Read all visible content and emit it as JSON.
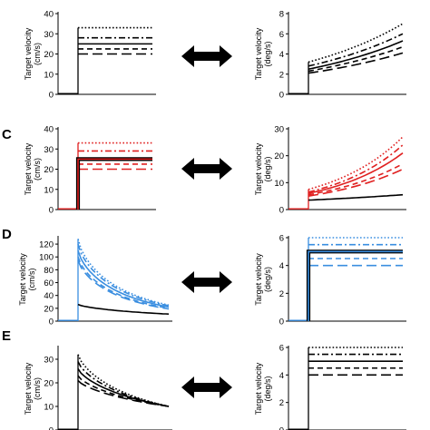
{
  "panel_letters": [
    "C",
    "D",
    "E"
  ],
  "chart_data": [
    {
      "type": "line",
      "panel": "B-left",
      "ylabel": "Target velocity",
      "yunit": "(cm/s)",
      "ylim": [
        0,
        40
      ],
      "yticks": [
        "0",
        "10",
        "20",
        "30",
        "40"
      ],
      "color": "#000000",
      "shape": "step",
      "series": [
        {
          "style": "dotted",
          "values": [
            0,
            33,
            33
          ]
        },
        {
          "style": "dashdot",
          "values": [
            0,
            28,
            28
          ]
        },
        {
          "style": "solid",
          "values": [
            0,
            25,
            25
          ]
        },
        {
          "style": "dashed",
          "values": [
            0,
            22.5,
            22.5
          ]
        },
        {
          "style": "longdash",
          "values": [
            0,
            20,
            20
          ]
        }
      ]
    },
    {
      "type": "line",
      "panel": "B-right",
      "ylabel": "Target velocity",
      "yunit": "(deg/s)",
      "ylim": [
        0,
        8
      ],
      "yticks": [
        "0",
        "2",
        "4",
        "6",
        "8"
      ],
      "color": "#000000",
      "shape": "growth",
      "series": [
        {
          "style": "dotted",
          "start": 3.2,
          "end": 7.0
        },
        {
          "style": "dashdot",
          "start": 2.8,
          "end": 6.0
        },
        {
          "style": "solid",
          "start": 2.5,
          "end": 5.3
        },
        {
          "style": "dashed",
          "start": 2.3,
          "end": 4.7
        },
        {
          "style": "longdash",
          "start": 2.1,
          "end": 4.1
        }
      ]
    },
    {
      "type": "line",
      "panel": "C-left",
      "ylabel": "Target velocity",
      "yunit": "(cm/s)",
      "ylim": [
        0,
        40
      ],
      "yticks": [
        "0",
        "10",
        "20",
        "30",
        "40"
      ],
      "color": "#e02020",
      "shape": "step",
      "highlight": {
        "style": "solid",
        "color": "#000000",
        "values": [
          0,
          25,
          25
        ]
      },
      "series": [
        {
          "style": "dotted",
          "values": [
            0,
            33,
            33
          ]
        },
        {
          "style": "dashdot",
          "values": [
            0,
            29,
            29
          ]
        },
        {
          "style": "solid",
          "values": [
            0,
            25,
            25
          ]
        },
        {
          "style": "dashed",
          "values": [
            0,
            22.5,
            22.5
          ]
        },
        {
          "style": "longdash",
          "values": [
            0,
            20,
            20
          ]
        }
      ]
    },
    {
      "type": "line",
      "panel": "C-right",
      "ylabel": "Target velocity",
      "yunit": "(deg/s)",
      "ylim": [
        0,
        30
      ],
      "yticks": [
        "0",
        "10",
        "20",
        "30"
      ],
      "color": "#e02020",
      "shape": "growth",
      "reference": {
        "style": "solid",
        "color": "#000000",
        "start": 3.5,
        "end": 5.5
      },
      "series": [
        {
          "style": "dotted",
          "start": 7.5,
          "end": 27
        },
        {
          "style": "dashdot",
          "start": 6.5,
          "end": 24
        },
        {
          "style": "solid",
          "start": 6.0,
          "end": 21
        },
        {
          "style": "dashed",
          "start": 5.5,
          "end": 17
        },
        {
          "style": "longdash",
          "start": 5.0,
          "end": 15
        }
      ]
    },
    {
      "type": "line",
      "panel": "D-left",
      "ylabel": "Target velocity",
      "yunit": "(cm/s)",
      "ylim": [
        0,
        130
      ],
      "yticks": [
        "0",
        "20",
        "40",
        "60",
        "80",
        "100",
        "120"
      ],
      "color": "#3a8ee0",
      "shape": "decay",
      "reference": {
        "style": "solid",
        "color": "#000000",
        "start": 26,
        "end": 11
      },
      "series": [
        {
          "style": "dotted",
          "start": 128,
          "end": 25
        },
        {
          "style": "dashdot",
          "start": 120,
          "end": 24
        },
        {
          "style": "solid",
          "start": 110,
          "end": 22
        },
        {
          "style": "dashed",
          "start": 100,
          "end": 20
        },
        {
          "style": "longdash",
          "start": 95,
          "end": 19
        }
      ]
    },
    {
      "type": "line",
      "panel": "D-right",
      "ylabel": "Target velocity",
      "yunit": "(deg/s)",
      "ylim": [
        0,
        6
      ],
      "yticks": [
        "0",
        "2",
        "4",
        "6"
      ],
      "color": "#3a8ee0",
      "shape": "step",
      "highlight": {
        "style": "solid",
        "color": "#000000",
        "values": [
          0,
          5,
          5
        ]
      },
      "series": [
        {
          "style": "dotted",
          "values": [
            0,
            6,
            6
          ]
        },
        {
          "style": "dashdot",
          "values": [
            0,
            5.5,
            5.5
          ]
        },
        {
          "style": "solid",
          "values": [
            0,
            5,
            5
          ]
        },
        {
          "style": "dashed",
          "values": [
            0,
            4.5,
            4.5
          ]
        },
        {
          "style": "longdash",
          "values": [
            0,
            4,
            4
          ]
        }
      ]
    },
    {
      "type": "line",
      "panel": "E-left",
      "ylabel": "Target velocity",
      "yunit": "(cm/s)",
      "ylim": [
        0,
        35
      ],
      "yticks": [
        "0",
        "10",
        "20",
        "30"
      ],
      "color": "#000000",
      "shape": "decay",
      "series": [
        {
          "style": "dotted",
          "start": 32,
          "end": 10
        },
        {
          "style": "dashdot",
          "start": 29,
          "end": 10
        },
        {
          "style": "solid",
          "start": 26,
          "end": 10
        },
        {
          "style": "dashed",
          "start": 23,
          "end": 10
        },
        {
          "style": "longdash",
          "start": 21,
          "end": 10
        }
      ]
    },
    {
      "type": "line",
      "panel": "E-right",
      "ylabel": "Target velocity",
      "yunit": "(deg/s)",
      "ylim": [
        0,
        6
      ],
      "yticks": [
        "0",
        "2",
        "4",
        "6"
      ],
      "color": "#000000",
      "shape": "step",
      "series": [
        {
          "style": "dotted",
          "values": [
            0,
            6,
            6
          ]
        },
        {
          "style": "dashdot",
          "values": [
            0,
            5.5,
            5.5
          ]
        },
        {
          "style": "solid",
          "values": [
            0,
            5,
            5
          ]
        },
        {
          "style": "dashed",
          "values": [
            0,
            4.5,
            4.5
          ]
        },
        {
          "style": "longdash",
          "values": [
            0,
            4,
            4
          ]
        }
      ]
    }
  ]
}
